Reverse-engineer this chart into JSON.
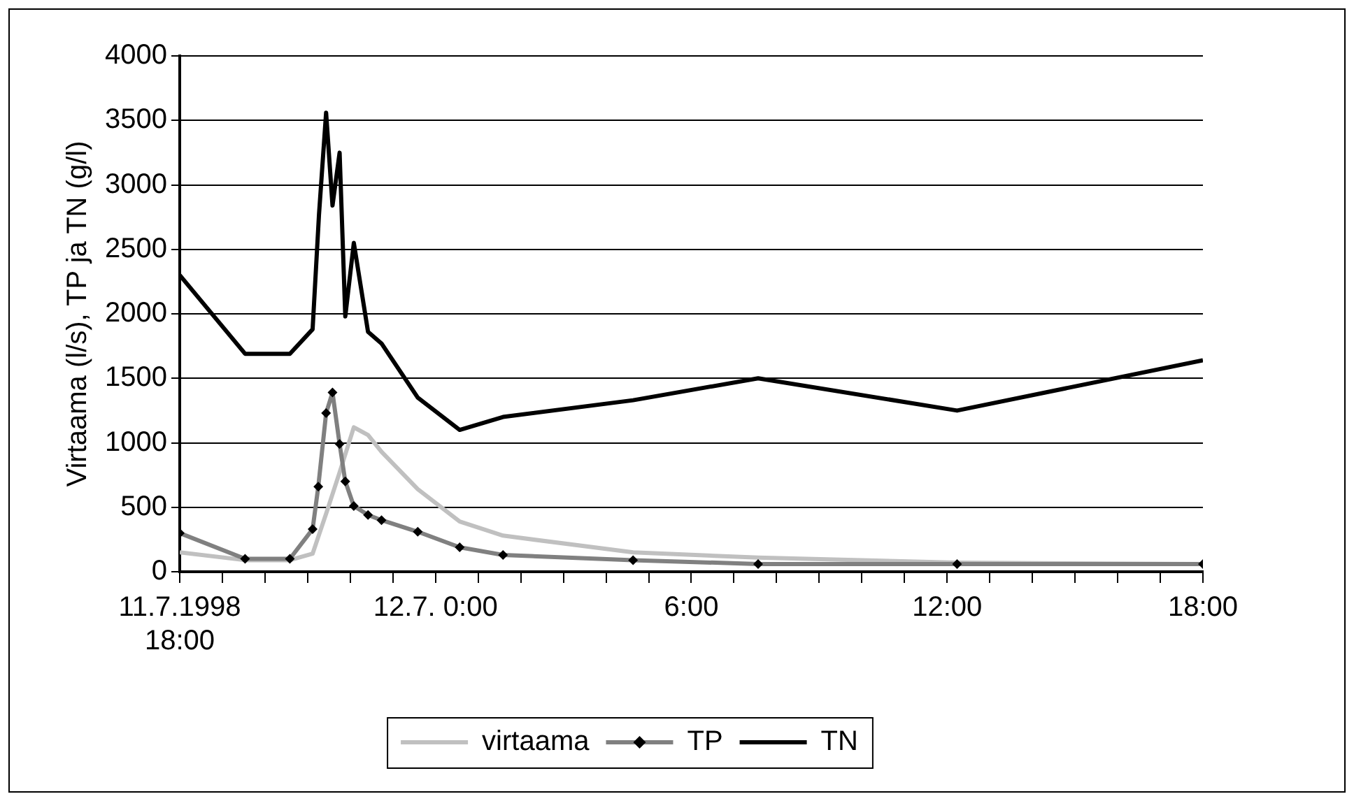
{
  "chart_data": {
    "type": "line",
    "ylabel": "Virtaama (l/s), TP ja TN (g/l)",
    "xlim": [
      "1998-07-11T18:00",
      "1998-07-12T18:00"
    ],
    "ylim": [
      0,
      4000
    ],
    "yticks": [
      0,
      500,
      1000,
      1500,
      2000,
      2500,
      3000,
      3500,
      4000
    ],
    "xticks": [
      {
        "value": "1998-07-11T18:00",
        "label": "11.7.1998\n18:00"
      },
      {
        "value": "1998-07-11T19:00",
        "label": null
      },
      {
        "value": "1998-07-11T20:00",
        "label": null
      },
      {
        "value": "1998-07-11T21:00",
        "label": null
      },
      {
        "value": "1998-07-11T22:00",
        "label": null
      },
      {
        "value": "1998-07-11T23:00",
        "label": null
      },
      {
        "value": "1998-07-12T00:00",
        "label": "12.7. 0:00"
      },
      {
        "value": "1998-07-12T01:00",
        "label": null
      },
      {
        "value": "1998-07-12T02:00",
        "label": null
      },
      {
        "value": "1998-07-12T03:00",
        "label": null
      },
      {
        "value": "1998-07-12T04:00",
        "label": null
      },
      {
        "value": "1998-07-12T05:00",
        "label": null
      },
      {
        "value": "1998-07-12T06:00",
        "label": "6:00"
      },
      {
        "value": "1998-07-12T07:00",
        "label": null
      },
      {
        "value": "1998-07-12T08:00",
        "label": null
      },
      {
        "value": "1998-07-12T09:00",
        "label": null
      },
      {
        "value": "1998-07-12T10:00",
        "label": null
      },
      {
        "value": "1998-07-12T11:00",
        "label": null
      },
      {
        "value": "1998-07-12T12:00",
        "label": "12:00"
      },
      {
        "value": "1998-07-12T13:00",
        "label": null
      },
      {
        "value": "1998-07-12T14:00",
        "label": null
      },
      {
        "value": "1998-07-12T15:00",
        "label": null
      },
      {
        "value": "1998-07-12T16:00",
        "label": null
      },
      {
        "value": "1998-07-12T17:00",
        "label": null
      },
      {
        "value": "1998-07-12T18:00",
        "label": "18:00"
      }
    ],
    "grid": "y",
    "legend": "bottom",
    "line_style": "solid",
    "series": [
      {
        "name": "virtaama",
        "color": "#c0c0c0",
        "marker": "none",
        "x": [
          "1998-07-11T18:00",
          "1998-07-11T19:32",
          "1998-07-11T20:35",
          "1998-07-11T21:07",
          "1998-07-11T21:26",
          "1998-07-11T21:45",
          "1998-07-11T22:05",
          "1998-07-11T22:25",
          "1998-07-11T22:44",
          "1998-07-11T23:35",
          "1998-07-12T00:34",
          "1998-07-12T01:35",
          "1998-07-12T04:38",
          "1998-07-12T07:34",
          "1998-07-12T12:14",
          "1998-07-12T18:00"
        ],
        "values": [
          150,
          90,
          90,
          140,
          450,
          770,
          1120,
          1060,
          930,
          640,
          390,
          280,
          150,
          110,
          70,
          60
        ]
      },
      {
        "name": "TP",
        "color": "#808080",
        "marker": "diamond",
        "x": [
          "1998-07-11T18:00",
          "1998-07-11T19:32",
          "1998-07-11T20:35",
          "1998-07-11T21:07",
          "1998-07-11T21:15",
          "1998-07-11T21:26",
          "1998-07-11T21:35",
          "1998-07-11T21:45",
          "1998-07-11T21:53",
          "1998-07-11T22:05",
          "1998-07-11T22:25",
          "1998-07-11T22:44",
          "1998-07-11T23:35",
          "1998-07-12T00:34",
          "1998-07-12T01:35",
          "1998-07-12T04:38",
          "1998-07-12T07:34",
          "1998-07-12T12:14",
          "1998-07-12T18:00"
        ],
        "values": [
          300,
          100,
          100,
          330,
          660,
          1230,
          1390,
          990,
          700,
          510,
          440,
          400,
          310,
          190,
          130,
          90,
          60,
          60,
          60
        ]
      },
      {
        "name": "TN",
        "color": "#000000",
        "marker": "none",
        "x": [
          "1998-07-11T18:00",
          "1998-07-11T19:32",
          "1998-07-11T20:35",
          "1998-07-11T21:07",
          "1998-07-11T21:16",
          "1998-07-11T21:26",
          "1998-07-11T21:35",
          "1998-07-11T21:45",
          "1998-07-11T21:53",
          "1998-07-11T22:05",
          "1998-07-11T22:25",
          "1998-07-11T22:44",
          "1998-07-11T23:35",
          "1998-07-12T00:34",
          "1998-07-12T01:35",
          "1998-07-12T04:38",
          "1998-07-12T07:34",
          "1998-07-12T12:14",
          "1998-07-12T18:00"
        ],
        "values": [
          2300,
          1690,
          1690,
          1880,
          2770,
          3560,
          2840,
          3250,
          1980,
          2550,
          1860,
          1770,
          1350,
          1100,
          1200,
          1330,
          1500,
          1250,
          1640
        ]
      }
    ]
  }
}
